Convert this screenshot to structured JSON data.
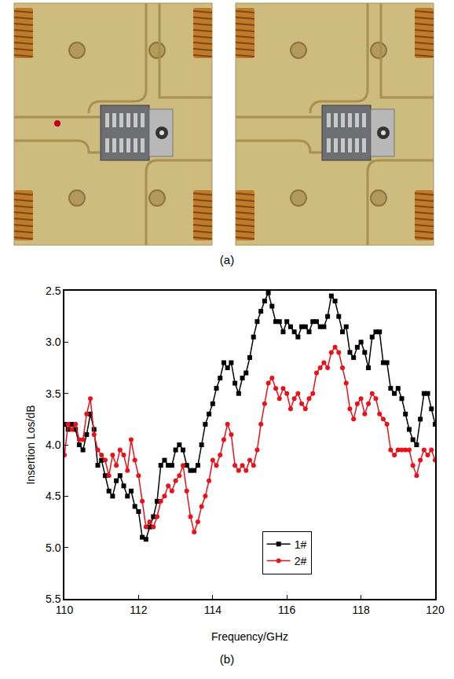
{
  "photo_panel": {
    "label": "(a)"
  },
  "chart_panel": {
    "label": "(b)"
  },
  "chart_data": {
    "type": "line",
    "x_label": "Frequency/GHz",
    "y_label": "Insertion Los/dB",
    "xlim": [
      110,
      120
    ],
    "xticks": [
      110,
      112,
      114,
      116,
      118,
      120
    ],
    "ylim": [
      5.5,
      2.5
    ],
    "yticks": [
      2.5,
      {
        "value": 3,
        "label": "3.0"
      },
      3.5,
      {
        "value": 4,
        "label": "4.0"
      },
      4.5,
      {
        "value": 5,
        "label": "5.0"
      },
      5.5
    ],
    "grid": false,
    "legend": "bottom",
    "x": [
      110.0,
      110.1,
      110.2,
      110.3,
      110.4,
      110.5,
      110.6,
      110.7,
      110.8,
      110.9,
      111.0,
      111.1,
      111.2,
      111.3,
      111.4,
      111.5,
      111.6,
      111.7,
      111.8,
      111.9,
      112.0,
      112.1,
      112.2,
      112.3,
      112.4,
      112.5,
      112.6,
      112.7,
      112.8,
      112.9,
      113.0,
      113.1,
      113.2,
      113.3,
      113.4,
      113.5,
      113.6,
      113.7,
      113.8,
      113.9,
      114.0,
      114.1,
      114.2,
      114.3,
      114.4,
      114.5,
      114.6,
      114.7,
      114.8,
      114.9,
      115.0,
      115.1,
      115.2,
      115.3,
      115.4,
      115.5,
      115.6,
      115.7,
      115.8,
      115.9,
      116.0,
      116.1,
      116.2,
      116.3,
      116.4,
      116.5,
      116.6,
      116.7,
      116.8,
      116.9,
      117.0,
      117.1,
      117.2,
      117.3,
      117.4,
      117.5,
      117.6,
      117.7,
      117.8,
      117.9,
      118.0,
      118.1,
      118.2,
      118.3,
      118.4,
      118.5,
      118.6,
      118.7,
      118.8,
      118.9,
      119.0,
      119.1,
      119.2,
      119.3,
      119.4,
      119.5,
      119.6,
      119.7,
      119.8,
      119.9,
      120.0
    ],
    "series": [
      {
        "name": "1#",
        "color": "#000000",
        "marker": "square",
        "line_style": "solid",
        "values": [
          3.8,
          3.85,
          3.8,
          3.85,
          4.0,
          4.05,
          3.9,
          3.7,
          3.85,
          4.2,
          4.15,
          4.3,
          4.45,
          4.5,
          4.35,
          4.3,
          4.4,
          4.5,
          4.45,
          4.6,
          4.65,
          4.9,
          4.92,
          4.8,
          4.7,
          4.55,
          4.2,
          4.15,
          4.2,
          4.2,
          4.05,
          4.0,
          4.05,
          4.2,
          4.25,
          4.25,
          4.2,
          4.0,
          3.8,
          3.7,
          3.6,
          3.45,
          3.35,
          3.2,
          3.25,
          3.2,
          3.4,
          3.5,
          3.35,
          3.3,
          3.15,
          2.95,
          2.8,
          2.7,
          2.6,
          2.52,
          2.65,
          2.8,
          2.8,
          2.9,
          2.8,
          2.85,
          2.9,
          2.95,
          2.85,
          2.85,
          2.9,
          2.8,
          2.8,
          2.85,
          2.85,
          2.75,
          2.55,
          2.6,
          2.75,
          2.9,
          2.85,
          3.1,
          3.15,
          3.05,
          3.0,
          3.1,
          3.25,
          2.95,
          2.9,
          2.9,
          3.2,
          3.2,
          3.45,
          3.5,
          3.45,
          3.55,
          3.7,
          3.85,
          3.95,
          4.0,
          3.75,
          3.5,
          3.5,
          3.65,
          3.8
        ]
      },
      {
        "name": "2#",
        "color": "#e8121b",
        "marker": "circle",
        "line_style": "solid",
        "values": [
          4.1,
          3.8,
          3.85,
          3.8,
          3.95,
          3.95,
          3.7,
          3.55,
          3.9,
          4.05,
          4.1,
          4.15,
          4.3,
          4.1,
          4.2,
          4.05,
          4.1,
          4.25,
          3.95,
          4.15,
          4.3,
          4.55,
          4.8,
          4.75,
          4.8,
          4.7,
          4.55,
          4.5,
          4.4,
          4.45,
          4.35,
          4.3,
          4.2,
          4.45,
          4.7,
          4.85,
          4.75,
          4.6,
          4.5,
          4.35,
          4.15,
          4.2,
          4.1,
          3.95,
          3.8,
          3.9,
          4.2,
          4.25,
          4.2,
          4.25,
          4.15,
          4.2,
          4.05,
          3.8,
          3.6,
          3.4,
          3.35,
          3.45,
          3.55,
          3.45,
          3.5,
          3.65,
          3.55,
          3.5,
          3.6,
          3.65,
          3.55,
          3.5,
          3.3,
          3.25,
          3.2,
          3.25,
          3.1,
          3.05,
          3.1,
          3.25,
          3.4,
          3.65,
          3.75,
          3.6,
          3.55,
          3.7,
          3.6,
          3.5,
          3.55,
          3.7,
          3.75,
          3.8,
          4.05,
          4.1,
          4.05,
          4.05,
          4.05,
          4.05,
          4.2,
          4.3,
          4.15,
          4.05,
          4.1,
          4.05,
          4.15
        ]
      }
    ]
  }
}
